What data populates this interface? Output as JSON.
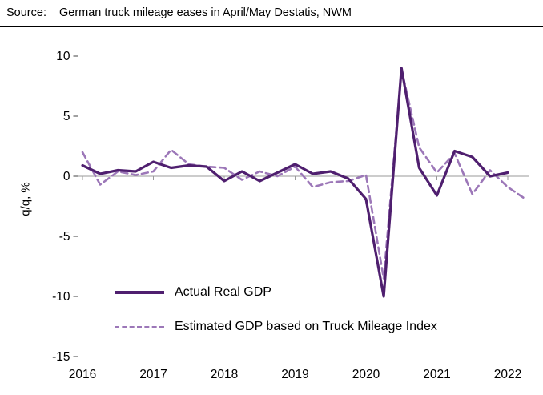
{
  "header": {
    "source_label": "Source:",
    "title": "German truck mileage eases in April/May Destatis, NWM"
  },
  "chart_data": {
    "type": "line",
    "title": "German truck mileage eases in April/May Destatis, NWM",
    "ylabel": "q/q, %",
    "ylim": [
      -15,
      10
    ],
    "yticks": [
      10,
      5,
      0,
      -5,
      -10,
      -15
    ],
    "xticks": [
      2016,
      2017,
      2018,
      2019,
      2020,
      2021,
      2022
    ],
    "x_start_year": 2016,
    "x_step_years": 0.25,
    "grid": "zero-line-only",
    "legend_position": "inside-bottom-left",
    "series": [
      {
        "name": "Actual Real GDP",
        "style": "solid",
        "color": "#4F1F6F",
        "values": [
          0.9,
          0.2,
          0.5,
          0.4,
          1.2,
          0.7,
          0.9,
          0.8,
          -0.4,
          0.4,
          -0.4,
          0.3,
          1.0,
          0.2,
          0.4,
          -0.2,
          -1.9,
          -10.0,
          9.0,
          0.7,
          -1.6,
          2.1,
          1.6,
          0.0,
          0.3
        ]
      },
      {
        "name": "Estimated GDP based on Truck Mileage Index",
        "style": "dashed",
        "color": "#9C77B8",
        "values": [
          2.0,
          -0.7,
          0.4,
          0.1,
          0.4,
          2.2,
          1.0,
          0.8,
          0.7,
          -0.3,
          0.4,
          0.0,
          0.8,
          -0.9,
          -0.5,
          -0.4,
          0.1,
          -8.5,
          8.9,
          2.4,
          0.3,
          1.9,
          -1.5,
          0.5,
          -0.9,
          -1.9
        ]
      }
    ]
  }
}
